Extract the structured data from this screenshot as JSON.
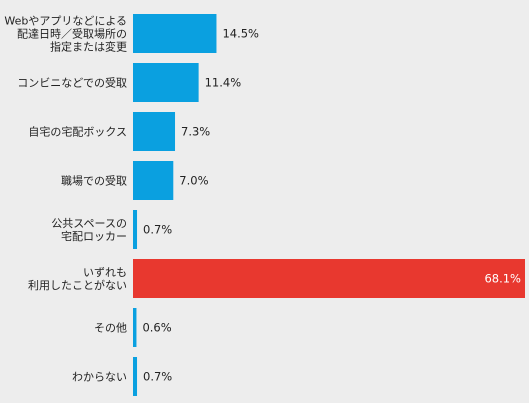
{
  "chart_data": {
    "type": "bar",
    "orientation": "horizontal",
    "categories": [
      [
        "Webやアプリなどによる",
        "配達日時／受取場所の",
        "指定または変更"
      ],
      [
        "コンビニなどでの受取"
      ],
      [
        "自宅の宅配ボックス"
      ],
      [
        "職場での受取"
      ],
      [
        "公共スペースの",
        "宅配ロッカー"
      ],
      [
        "いずれも",
        "利用したことがない"
      ],
      [
        "その他"
      ],
      [
        "わからない"
      ]
    ],
    "values": [
      14.5,
      11.4,
      7.3,
      7.0,
      0.7,
      68.1,
      0.6,
      0.7
    ],
    "value_labels": [
      "14.5%",
      "11.4%",
      "7.3%",
      "7.0%",
      "0.7%",
      "68.1%",
      "0.6%",
      "0.7%"
    ],
    "colors": [
      "#0aa0e0",
      "#0aa0e0",
      "#0aa0e0",
      "#0aa0e0",
      "#0aa0e0",
      "#e8382f",
      "#0aa0e0",
      "#0aa0e0"
    ],
    "xlim": [
      0,
      68.1
    ],
    "grid": false,
    "background": "#ededed"
  }
}
